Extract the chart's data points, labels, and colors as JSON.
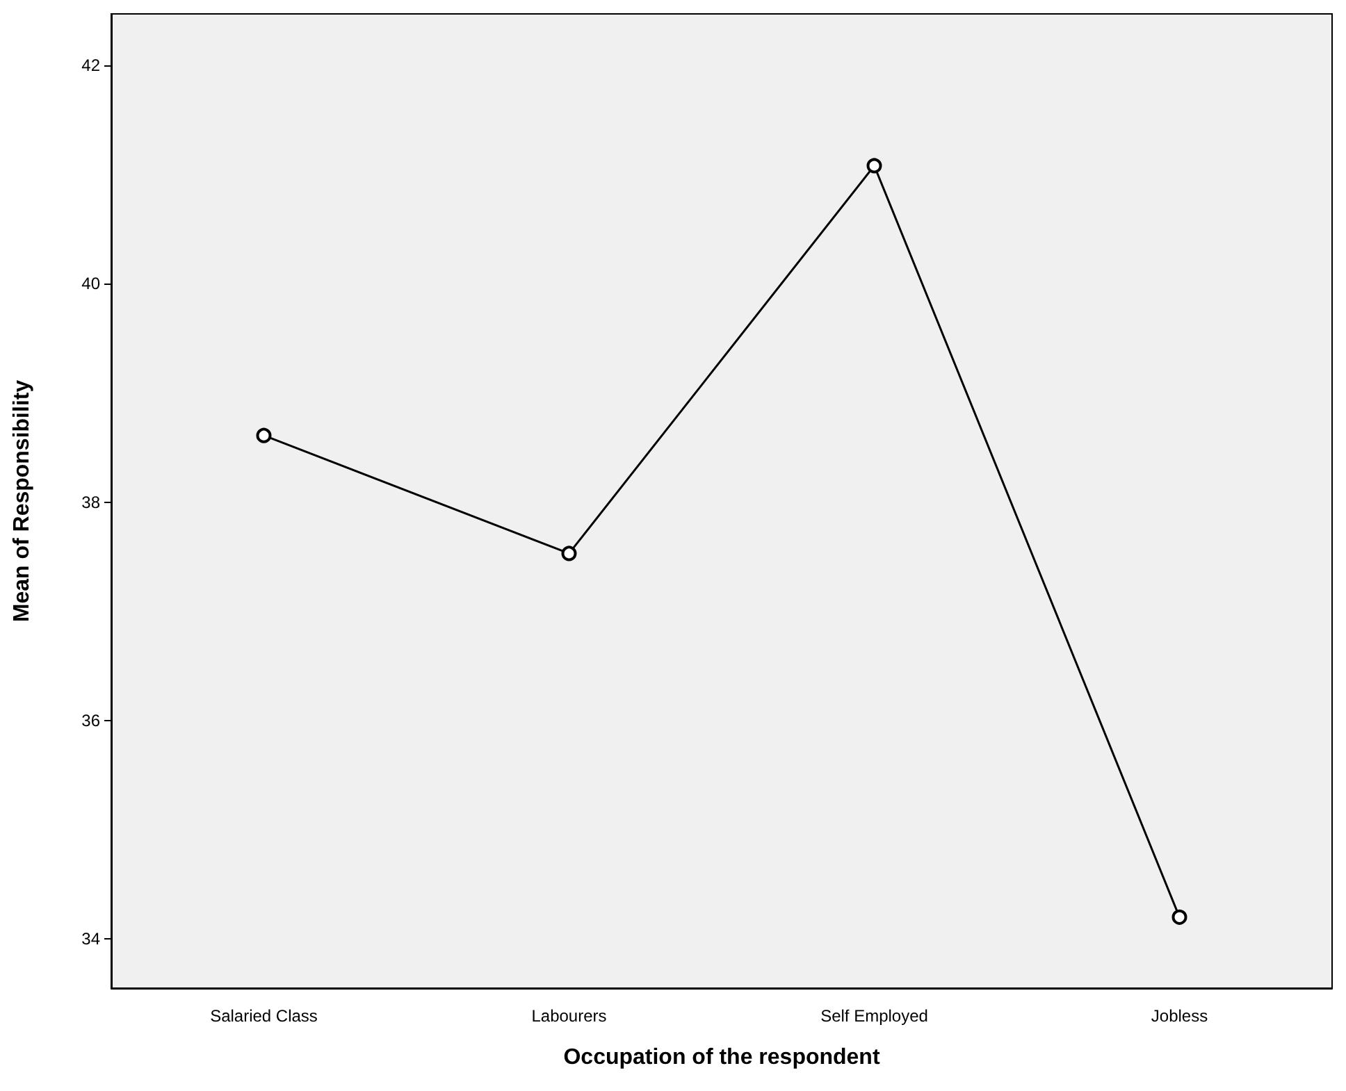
{
  "chart_data": {
    "type": "line",
    "xlabel": "Occupation of the respondent",
    "ylabel": "Mean of Responsibility",
    "categories": [
      "Salaried Class",
      "Labourers",
      "Self Employed",
      "Jobless"
    ],
    "series": [
      {
        "color": "#000000",
        "values": [
          38.61,
          37.53,
          41.08,
          34.2
        ]
      }
    ],
    "ylim": [
      33.55,
      42.47
    ],
    "yticks": [
      34,
      36,
      38,
      40,
      42
    ],
    "marker": "circle",
    "line_style": "solid"
  }
}
